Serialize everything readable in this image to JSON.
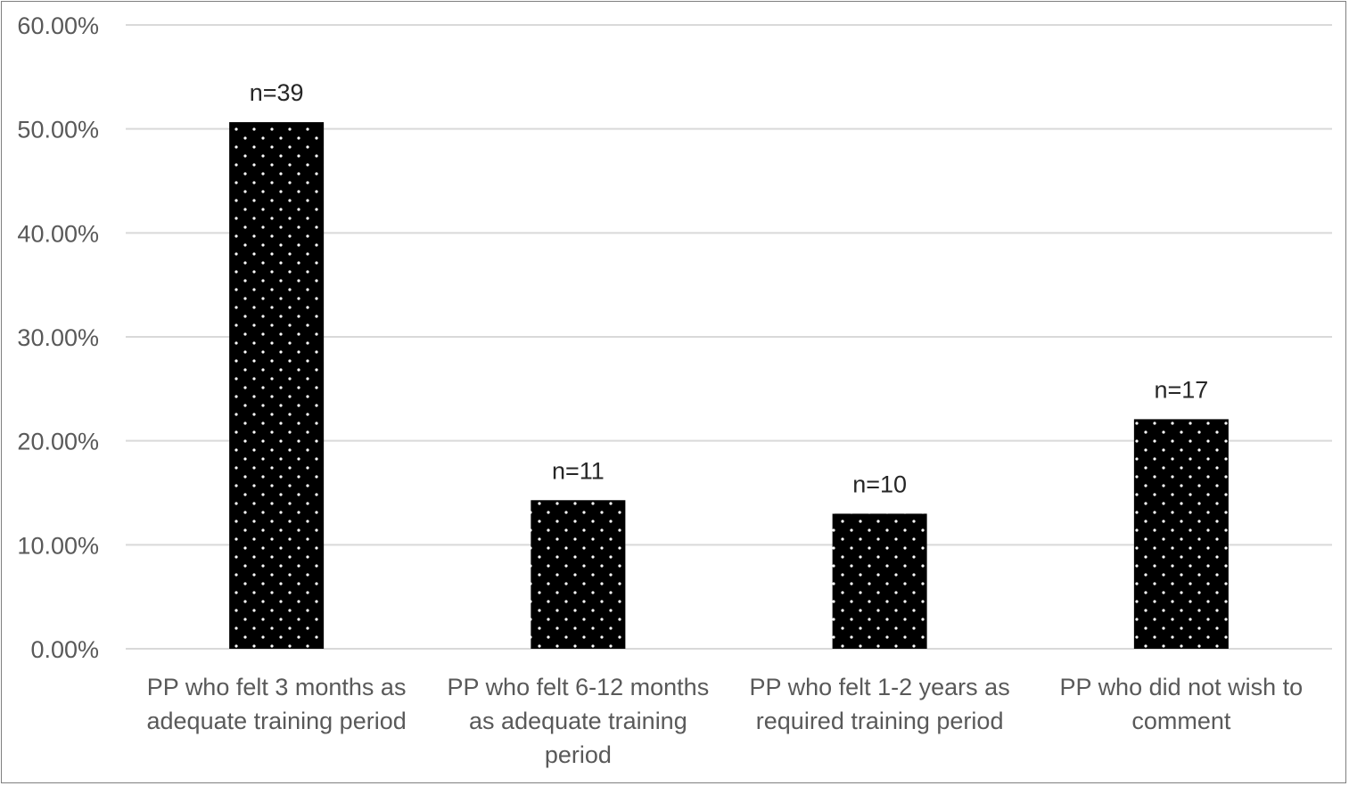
{
  "chart_data": {
    "type": "bar",
    "categories": [
      [
        "PP who felt 3 months as",
        "adequate training period"
      ],
      [
        "PP who felt 6-12 months",
        "as adequate training",
        "period"
      ],
      [
        "PP who felt 1-2 years as",
        "required training period"
      ],
      [
        "PP who did not wish to",
        "comment"
      ]
    ],
    "values": [
      50.65,
      14.29,
      12.99,
      22.08
    ],
    "data_labels": [
      "n=39",
      "n=11",
      "n=10",
      "n=17"
    ],
    "y_ticks": [
      "0.00%",
      "10.00%",
      "20.00%",
      "30.00%",
      "40.00%",
      "50.00%",
      "60.00%"
    ],
    "y_tick_values": [
      0,
      10,
      20,
      30,
      40,
      50,
      60
    ],
    "ylim": [
      0,
      60
    ],
    "grid": true,
    "bar_fill": "#000000",
    "bar_pattern": "white dots",
    "title": "",
    "xlabel": "",
    "ylabel": ""
  }
}
